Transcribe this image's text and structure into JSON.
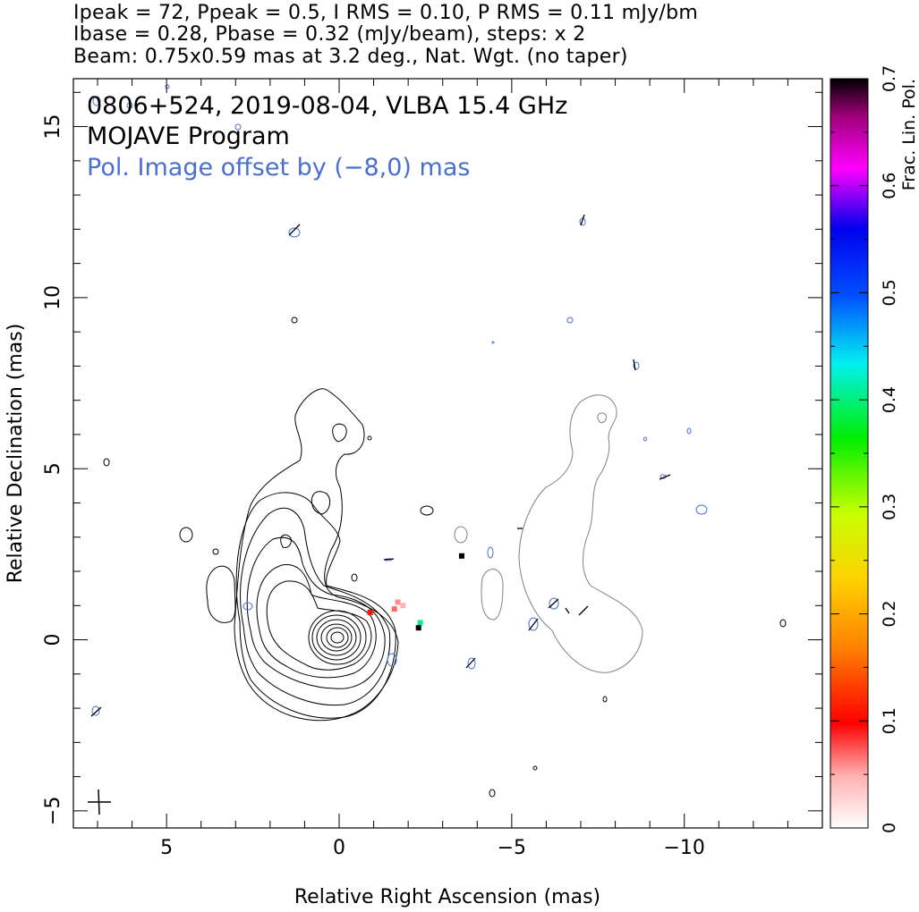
{
  "header": {
    "line1": "Ipeak = 72, Ppeak = 0.5, I RMS = 0.10, P RMS = 0.11 mJy/bm",
    "line2": "Ibase = 0.28, Pbase = 0.32 (mJy/beam), steps: x 2",
    "line3": "Beam: 0.75x0.59 mas at 3.2 deg., Nat. Wgt. (no taper)"
  },
  "plot": {
    "source_line": "0806+524, 2019-08-04, VLBA 15.4 GHz",
    "program_line": "MOJAVE Program",
    "offset_note": "Pol. Image offset by (−8,0) mas"
  },
  "colors": {
    "total_intensity_contour": "#000000",
    "pol_intensity_contour": "#4a6fd0",
    "offset_total_contour": "#808080",
    "offset_note": "#4a6fd0"
  },
  "chart_data": {
    "type": "contour",
    "xlabel": "Relative Right Ascension (mas)",
    "ylabel": "Relative Declination (mas)",
    "xlim": [
      7.7,
      -14.0
    ],
    "ylim": [
      -5.5,
      16.4
    ],
    "xticks": [
      5,
      0,
      -5,
      -10
    ],
    "xtick_labels": [
      "5",
      "0",
      "−5",
      "−10"
    ],
    "yticks": [
      -5,
      0,
      5,
      10,
      15
    ],
    "ytick_labels": [
      "−5",
      "0",
      "5",
      "10",
      "15"
    ],
    "colorbar": {
      "label": "Frac. Lin. Pol.",
      "range": [
        0,
        0.7
      ],
      "ticks": [
        0,
        0.1,
        0.2,
        0.3,
        0.4,
        0.5,
        0.6,
        0.7
      ],
      "tick_labels": [
        "0",
        "0.1",
        "0.2",
        "0.3",
        "0.4",
        "0.5",
        "0.6",
        "0.7"
      ]
    },
    "core_position": [
      0,
      0
    ],
    "beam": {
      "major": 0.75,
      "minor": 0.59,
      "pa_deg": 3.2
    },
    "fractional_polarization_pixels": [
      {
        "x": -1.7,
        "y": 1.1,
        "value": 0.06
      },
      {
        "x": -1.6,
        "y": 0.9,
        "value": 0.07
      },
      {
        "x": -1.85,
        "y": 1.0,
        "value": 0.05
      },
      {
        "x": -0.9,
        "y": 0.8,
        "value": 0.11
      },
      {
        "x": -2.35,
        "y": 0.5,
        "value": 0.4
      },
      {
        "x": -2.3,
        "y": 0.35,
        "value": 0.7
      },
      {
        "x": -3.55,
        "y": 2.45,
        "value": 0.7
      }
    ]
  }
}
